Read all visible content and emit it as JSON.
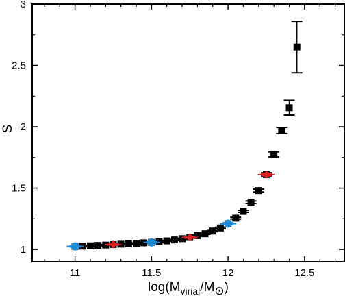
{
  "chart_data": {
    "type": "scatter",
    "title": "",
    "xlabel": {
      "prefix": "log(M",
      "sub": "virial",
      "mid": "/M",
      "sun": "⊙",
      "suffix": ")"
    },
    "ylabel": "S",
    "xlim": [
      10.72,
      12.76
    ],
    "ylim": [
      0.9,
      3.0
    ],
    "xticks": [
      11,
      11.5,
      12,
      12.5
    ],
    "xtick_labels": [
      "11",
      "11.5",
      "12",
      "12.5"
    ],
    "yticks": [
      1,
      1.5,
      2,
      2.5,
      3
    ],
    "ytick_labels": [
      "1",
      "1.5",
      "2",
      "2.5",
      "3"
    ],
    "minor_xticks": [
      10.8,
      10.9,
      11.1,
      11.2,
      11.3,
      11.4,
      11.6,
      11.7,
      11.8,
      11.9,
      12.1,
      12.2,
      12.3,
      12.4,
      12.6,
      12.7
    ],
    "minor_yticks": [
      1.25,
      1.75,
      2.25,
      2.75
    ],
    "grid": false,
    "series": [
      {
        "marker": "square",
        "color": "#000000",
        "points": [
          {
            "x": 11.0,
            "y": 1.025,
            "err": 0.004
          },
          {
            "x": 11.05,
            "y": 1.027,
            "err": 0.004
          },
          {
            "x": 11.1,
            "y": 1.03,
            "err": 0.004
          },
          {
            "x": 11.15,
            "y": 1.033,
            "err": 0.004
          },
          {
            "x": 11.2,
            "y": 1.036,
            "err": 0.004
          },
          {
            "x": 11.25,
            "y": 1.04,
            "err": 0.004
          },
          {
            "x": 11.3,
            "y": 1.043,
            "err": 0.004
          },
          {
            "x": 11.35,
            "y": 1.047,
            "err": 0.004
          },
          {
            "x": 11.4,
            "y": 1.05,
            "err": 0.004
          },
          {
            "x": 11.45,
            "y": 1.054,
            "err": 0.004
          },
          {
            "x": 11.5,
            "y": 1.058,
            "err": 0.004
          },
          {
            "x": 11.55,
            "y": 1.063,
            "err": 0.004
          },
          {
            "x": 11.6,
            "y": 1.07,
            "err": 0.004
          },
          {
            "x": 11.65,
            "y": 1.078,
            "err": 0.004
          },
          {
            "x": 11.7,
            "y": 1.088,
            "err": 0.004
          },
          {
            "x": 11.75,
            "y": 1.098,
            "err": 0.005
          },
          {
            "x": 11.8,
            "y": 1.113,
            "err": 0.005
          },
          {
            "x": 11.85,
            "y": 1.128,
            "err": 0.005
          },
          {
            "x": 11.9,
            "y": 1.15,
            "err": 0.005
          },
          {
            "x": 11.95,
            "y": 1.175,
            "err": 0.006
          },
          {
            "x": 12.0,
            "y": 1.21,
            "err": 0.006
          },
          {
            "x": 12.05,
            "y": 1.255,
            "err": 0.007
          },
          {
            "x": 12.1,
            "y": 1.31,
            "err": 0.008
          },
          {
            "x": 12.15,
            "y": 1.385,
            "err": 0.01
          },
          {
            "x": 12.2,
            "y": 1.48,
            "err": 0.012
          },
          {
            "x": 12.25,
            "y": 1.61,
            "err": 0.015
          },
          {
            "x": 12.3,
            "y": 1.775,
            "err": 0.02
          },
          {
            "x": 12.35,
            "y": 1.97,
            "err": 0.025
          },
          {
            "x": 12.4,
            "y": 2.155,
            "err": 0.06
          },
          {
            "x": 12.45,
            "y": 2.65,
            "err": 0.21
          }
        ]
      },
      {
        "marker": "diamond",
        "color": "#e02020",
        "points": [
          {
            "x": 11.0,
            "y": 1.025,
            "err": 0.004
          },
          {
            "x": 11.25,
            "y": 1.04,
            "err": 0.004
          },
          {
            "x": 11.75,
            "y": 1.098,
            "err": 0.005
          },
          {
            "x": 12.25,
            "y": 1.61,
            "err": 0.01
          }
        ]
      },
      {
        "marker": "circle",
        "color": "#1e8ad6",
        "points": [
          {
            "x": 11.0,
            "y": 1.025,
            "err": 0.004
          },
          {
            "x": 11.5,
            "y": 1.058,
            "err": 0.004
          },
          {
            "x": 12.0,
            "y": 1.21,
            "err": 0.005
          }
        ]
      }
    ]
  }
}
